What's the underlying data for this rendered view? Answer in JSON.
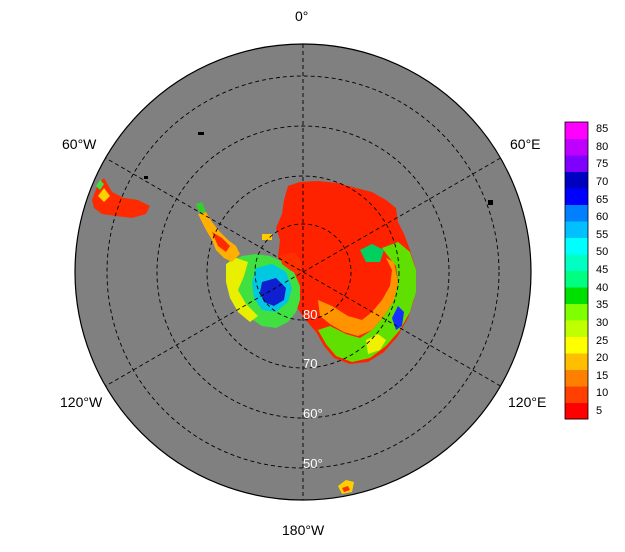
{
  "map": {
    "projection": "south-polar-stereographic",
    "ocean_color": "#808080",
    "gridline_color": "#000000",
    "longitude_labels": [
      "0°",
      "60°E",
      "120°E",
      "180°W",
      "120°W",
      "60°W"
    ],
    "latitude_labels": [
      "80",
      "70",
      "60°",
      "50°"
    ]
  },
  "colorbar": {
    "ticks": [
      "85",
      "80",
      "75",
      "70",
      "65",
      "60",
      "55",
      "50",
      "45",
      "40",
      "35",
      "30",
      "25",
      "20",
      "15",
      "10",
      "5"
    ],
    "colors": [
      "#ff0000",
      "#ff4000",
      "#ff8000",
      "#ffbf00",
      "#ffff00",
      "#c0ff00",
      "#80ff00",
      "#00e000",
      "#00ff80",
      "#00ffc0",
      "#00ffff",
      "#00c0ff",
      "#0080ff",
      "#0000ff",
      "#0000c0",
      "#8000ff",
      "#c000ff",
      "#ff00ff"
    ]
  }
}
